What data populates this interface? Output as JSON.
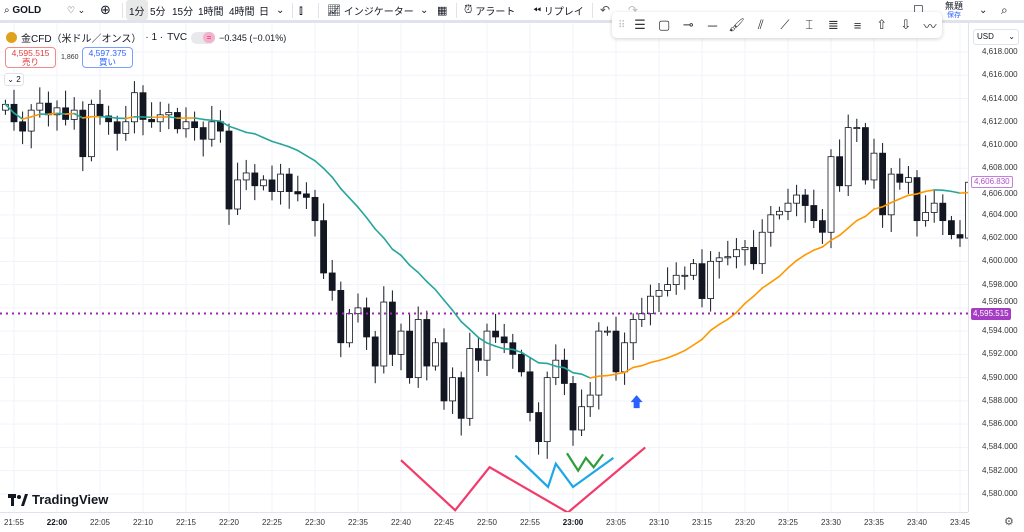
{
  "toolbar": {
    "symbol": "GOLD",
    "intervals": [
      "1分",
      "5分",
      "15分",
      "1時間",
      "4時間",
      "日"
    ],
    "selected_interval": "1分",
    "indicators_label": "インジケーター",
    "alert_label": "アラート",
    "replay_label": "リプレイ",
    "layout_name": "無題",
    "save_label": "保存"
  },
  "legend": {
    "title": "金CFD（米ドル／オンス）",
    "interval": "· 1 ·",
    "source": "TVC",
    "toggle_symbol": "=",
    "change": "−0.345 (−0.01%)",
    "sell_price": "4,595.515",
    "sell_label": "売り",
    "spread": "1,860",
    "buy_price": "4,597.375",
    "buy_label": "買い",
    "collapse_count": "2"
  },
  "axis": {
    "currency": "USD",
    "price_labels": [
      "4,618.000",
      "4,616.000",
      "4,614.000",
      "4,612.000",
      "4,610.000",
      "4,608.000",
      "4,606.000",
      "4,604.000",
      "4,602.000",
      "4,600.000",
      "4,598.000",
      "4,596.000",
      "4,594.000",
      "4,592.000",
      "4,590.000",
      "4,588.000",
      "4,586.000",
      "4,584.000",
      "4,582.000",
      "4,580.000"
    ],
    "current_price": "4,606.830",
    "line_price": "4,595.515",
    "time_labels": [
      "21:55",
      "22:00",
      "22:05",
      "22:10",
      "22:15",
      "22:20",
      "22:25",
      "22:30",
      "22:35",
      "22:40",
      "22:45",
      "22:50",
      "22:55",
      "23:00",
      "23:05",
      "23:10",
      "23:15",
      "23:20",
      "23:25",
      "23:30",
      "23:35",
      "23:40",
      "23:45"
    ],
    "bold_times": [
      "22:00",
      "23:00"
    ]
  },
  "brand": "TradingView",
  "colors": {
    "ma_down": "#26a69a",
    "ma_up": "#ff9800",
    "hline": "#9c27b0",
    "pink": "#f23a6b",
    "blue": "#1ea7e8",
    "green": "#2e9e3a",
    "arrow": "#2962ff"
  },
  "chart_data": {
    "type": "candlestick",
    "start_time": "21:54",
    "interval_minutes": 1,
    "first_open": 4613.0,
    "closes": [
      4613.5,
      4612.0,
      4611.2,
      4613.0,
      4613.6,
      4612.6,
      4613.2,
      4612.2,
      4613.0,
      4609.0,
      4613.5,
      4612.5,
      4612.0,
      4611.0,
      4612.0,
      4614.5,
      4612.2,
      4612.0,
      4612.6,
      4612.8,
      4611.4,
      4612.0,
      4611.5,
      4610.5,
      4612.0,
      4611.2,
      4604.5,
      4607.0,
      4607.6,
      4606.5,
      4607.0,
      4606.0,
      4607.5,
      4606.0,
      4605.8,
      4605.5,
      4603.5,
      4599.0,
      4597.5,
      4593.0,
      4595.5,
      4596.0,
      4593.5,
      4591.0,
      4596.5,
      4592.0,
      4594.0,
      4590.0,
      4595.0,
      4591.0,
      4593.0,
      4588.0,
      4590.0,
      4586.5,
      4592.5,
      4591.5,
      4594.0,
      4593.5,
      4593.0,
      4592.0,
      4590.5,
      4587.0,
      4584.5,
      4590.0,
      4591.5,
      4589.5,
      4585.5,
      4587.5,
      4588.5,
      4594.0,
      4594.0,
      4590.5,
      4593.0,
      4595.0,
      4595.5,
      4597.0,
      4597.5,
      4598.0,
      4598.8,
      4598.8,
      4599.8,
      4596.8,
      4600.0,
      4600.3,
      4600.4,
      4601.0,
      4601.2,
      4599.8,
      4602.5,
      4604.0,
      4604.3,
      4605.0,
      4605.7,
      4604.8,
      4603.5,
      4602.5,
      4609.0,
      4606.5,
      4611.5,
      4611.5,
      4607.0,
      4609.3,
      4604.0,
      4607.5,
      4606.8,
      4607.2,
      4603.5,
      4604.2,
      4605.0,
      4603.5,
      4602.3,
      4602.0,
      4606.8
    ],
    "moving_average_period": 20,
    "ylim": [
      4579,
      4619
    ],
    "horizontal_line": 4595.515,
    "drawings": [
      {
        "name": "pink-w-pattern",
        "points": [
          [
            40,
            4582.9
          ],
          [
            46.3,
            4578.6
          ],
          [
            50.3,
            4582.3
          ],
          [
            59.4,
            4578.4
          ],
          [
            68.4,
            4584.0
          ]
        ]
      },
      {
        "name": "blue-w-pattern",
        "points": [
          [
            53.3,
            4583.3
          ],
          [
            57.1,
            4580.6
          ],
          [
            58,
            4582.6
          ],
          [
            60,
            4580.6
          ],
          [
            64.7,
            4583.1
          ]
        ]
      },
      {
        "name": "green-w-pattern",
        "points": [
          [
            59.3,
            4583.5
          ],
          [
            60.6,
            4582.0
          ],
          [
            61.5,
            4583.1
          ],
          [
            62.4,
            4582.3
          ],
          [
            63.5,
            4583.4
          ]
        ]
      }
    ],
    "arrow_up": [
      67.4,
      4587.9
    ]
  }
}
